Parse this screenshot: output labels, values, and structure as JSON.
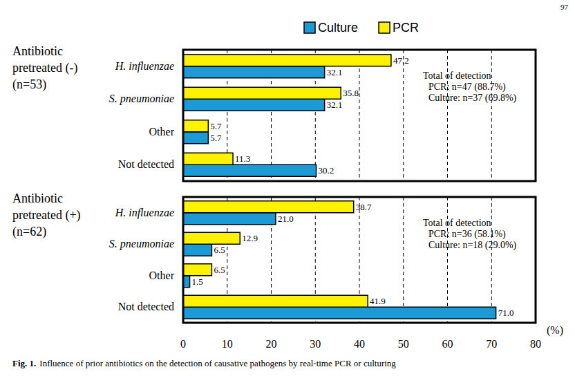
{
  "page_number": "97",
  "caption_label": "Fig. 1.",
  "caption": "Influence of prior antibiotics on the detection of causative pathogens by real-time PCR or culturing",
  "chart_data": [
    {
      "type": "bar",
      "orientation": "horizontal",
      "title": "Antibiotic pretreated (-)",
      "subtitle": "(n=53)",
      "categories": [
        "H. influenzae",
        "S. pneumoniae",
        "Other",
        "Not detected"
      ],
      "series": [
        {
          "name": "Culture",
          "color": "#1b9ad6",
          "values": [
            32.1,
            32.1,
            5.7,
            30.2
          ],
          "value_labels": [
            "32.1",
            "32.1",
            "5.7",
            "30.2"
          ]
        },
        {
          "name": "PCR",
          "color": "#fff200",
          "values": [
            47.2,
            35.8,
            5.7,
            11.3
          ],
          "value_labels": [
            "47.2",
            "35.8",
            "5.7",
            "11.3"
          ]
        }
      ],
      "annotations": [
        "Total of detection",
        "PCR: n=47 (88.7%)",
        "Culture: n=37 (69.8%)"
      ],
      "xlim": [
        0,
        80
      ],
      "xticks": [
        0,
        10,
        20,
        30,
        40,
        50,
        60,
        70,
        80
      ],
      "grid": true,
      "legend": "top",
      "data_labels": true,
      "tick_labels": "y"
    },
    {
      "type": "bar",
      "orientation": "horizontal",
      "title": "Antibiotic pretreated (+)",
      "subtitle": "(n=62)",
      "categories": [
        "H. influenzae",
        "S. pneumoniae",
        "Other",
        "Not detected"
      ],
      "series": [
        {
          "color": "#1b9ad6",
          "values": [
            21.0,
            6.5,
            1.5,
            71.0
          ],
          "value_labels": [
            "21.0",
            "6.5",
            "1.5",
            "71.0"
          ]
        },
        {
          "color": "#fff200",
          "values": [
            38.7,
            12.9,
            6.5,
            41.9
          ],
          "value_labels": [
            "38.7",
            "12.9",
            "6.5",
            "41.9"
          ]
        }
      ],
      "annotations": [
        "Total of detection",
        "PCR: n=36 (58.1%)",
        "Culture: n=18 (29.0%)"
      ],
      "x_label": "(%)",
      "xlim": [
        0,
        80
      ],
      "xticks": [
        0,
        10,
        20,
        30,
        40,
        50,
        60,
        70,
        80
      ],
      "grid": true,
      "data_labels": true
    }
  ]
}
